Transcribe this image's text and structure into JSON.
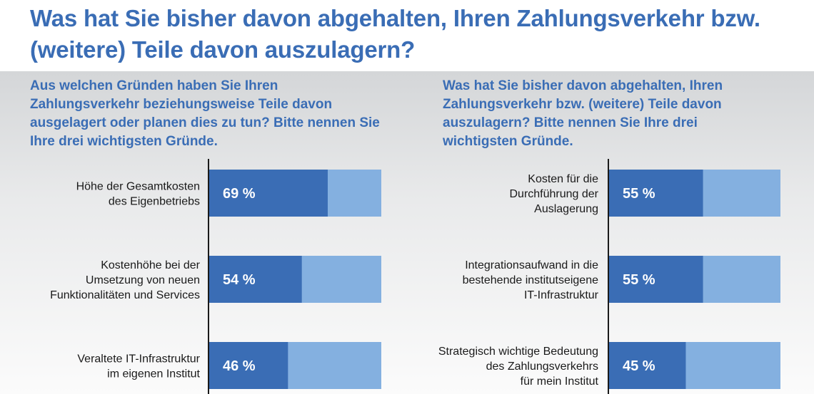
{
  "title": "Was hat Sie bisher davon abgehalten, Ihren Zahlungsverkehr bzw. (weitere) Teile davon auszulagern?",
  "colors": {
    "title": "#3a6db5",
    "bar_value": "#3a6db5",
    "bar_rest": "#84b0e0",
    "axis": "#1a1a1a"
  },
  "chart_data": [
    {
      "type": "bar",
      "orientation": "horizontal",
      "stacked_to_total": true,
      "title": "Aus welchen Gründen haben Sie Ihren Zahlungsverkehr beziehungsweise Teile davon ausgelagert oder planen dies zu tun? Bitte nennen Sie Ihre drei wichtigsten Gründe.",
      "categories": [
        [
          "Höhe der Gesamtkosten",
          "des Eigenbetriebs"
        ],
        [
          "Kostenhöhe bei der",
          "Umsetzung von neuen",
          "Funktionalitäten und Services"
        ],
        [
          "Veraltete IT-Infrastruktur",
          "im eigenen Institut"
        ]
      ],
      "values": [
        69,
        54,
        46
      ],
      "value_labels": [
        "69 %",
        "54 %",
        "46 %"
      ],
      "xlim": [
        0,
        100
      ],
      "unit": "%"
    },
    {
      "type": "bar",
      "orientation": "horizontal",
      "stacked_to_total": true,
      "title": "Was hat Sie bisher davon abgehalten, Ihren Zahlungsverkehr bzw. (weitere) Teile davon auszulagern? Bitte nennen Sie Ihre drei wichtigsten Gründe.",
      "categories": [
        [
          "Kosten für die",
          "Durchführung der",
          "Auslagerung"
        ],
        [
          "Integrationsaufwand in die",
          "bestehende institutseigene",
          "IT-Infrastruktur"
        ],
        [
          "Strategisch wichtige Bedeutung",
          "des Zahlungsverkehrs",
          "für mein Institut"
        ]
      ],
      "values": [
        55,
        55,
        45
      ],
      "value_labels": [
        "55 %",
        "55 %",
        "45 %"
      ],
      "xlim": [
        0,
        100
      ],
      "unit": "%"
    }
  ]
}
